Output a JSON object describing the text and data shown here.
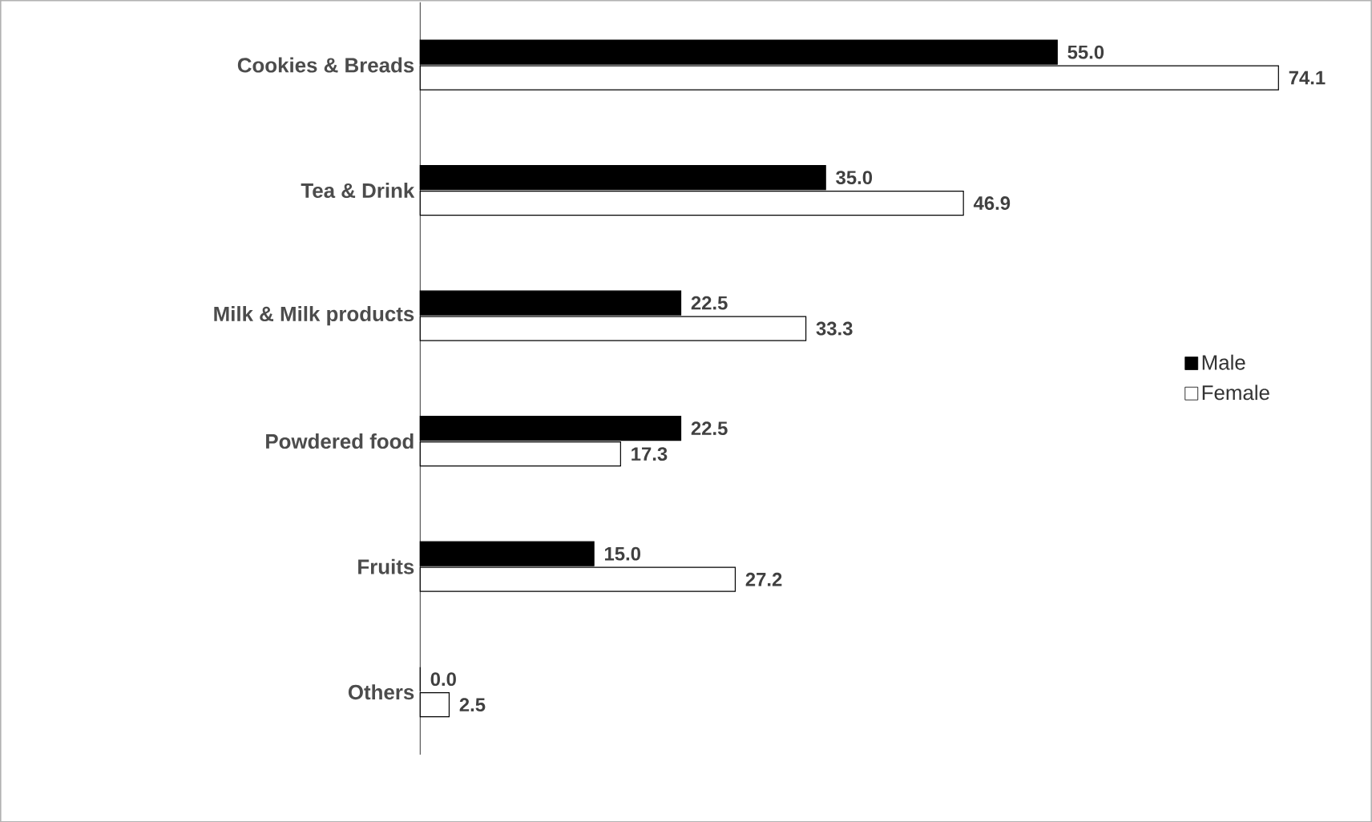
{
  "chart_data": {
    "type": "bar",
    "orientation": "horizontal",
    "categories": [
      "Cookies & Breads",
      "Tea & Drink",
      "Milk & Milk products",
      "Powdered food",
      "Fruits",
      "Others"
    ],
    "series": [
      {
        "name": "Male",
        "color": "#000000",
        "values": [
          55.0,
          35.0,
          22.5,
          22.5,
          15.0,
          0.0
        ],
        "value_labels": [
          "55.0",
          "35.0",
          "22.5",
          "22.5",
          "15.0",
          "0.0"
        ]
      },
      {
        "name": "Female",
        "color": "#ffffff",
        "values": [
          74.1,
          46.9,
          33.3,
          17.3,
          27.2,
          2.5
        ],
        "value_labels": [
          "74.1",
          "46.9",
          "33.3",
          "17.3",
          "27.2",
          "2.5"
        ]
      }
    ],
    "tick_labels": "y",
    "legend": "right",
    "grid": false
  }
}
